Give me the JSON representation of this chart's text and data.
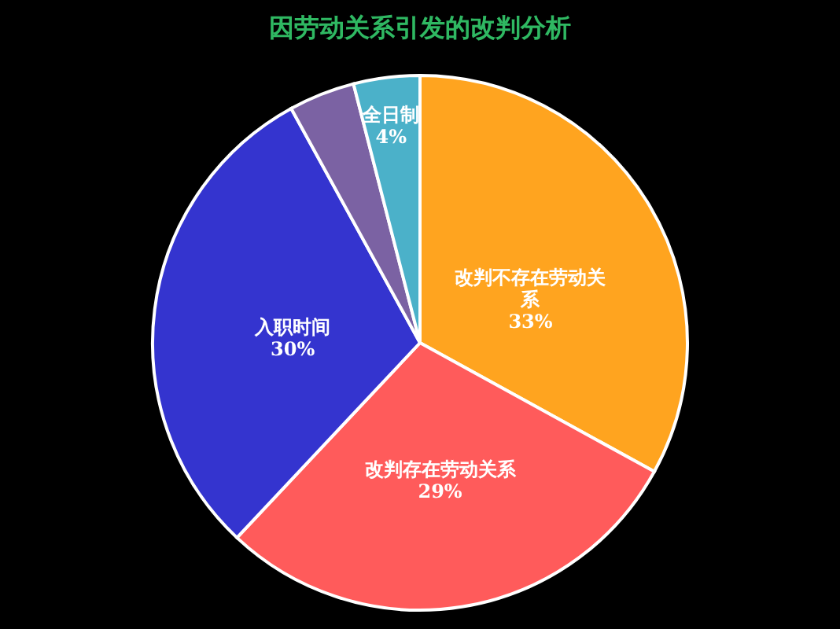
{
  "chart_data": {
    "type": "pie",
    "title": "因劳动关系引发的改判分析",
    "categories": [
      "改判不存在劳动关系",
      "改判存在劳动关系",
      "入职时间",
      null,
      "全日制"
    ],
    "values": [
      33,
      29,
      30,
      4,
      4
    ],
    "value_labels": [
      "33%",
      "29%",
      "30%",
      null,
      "4%"
    ],
    "colors": [
      "#ffa41f",
      "#ff5b5b",
      "#3434cf",
      "#7b62a3",
      "#4bb1c9"
    ]
  }
}
